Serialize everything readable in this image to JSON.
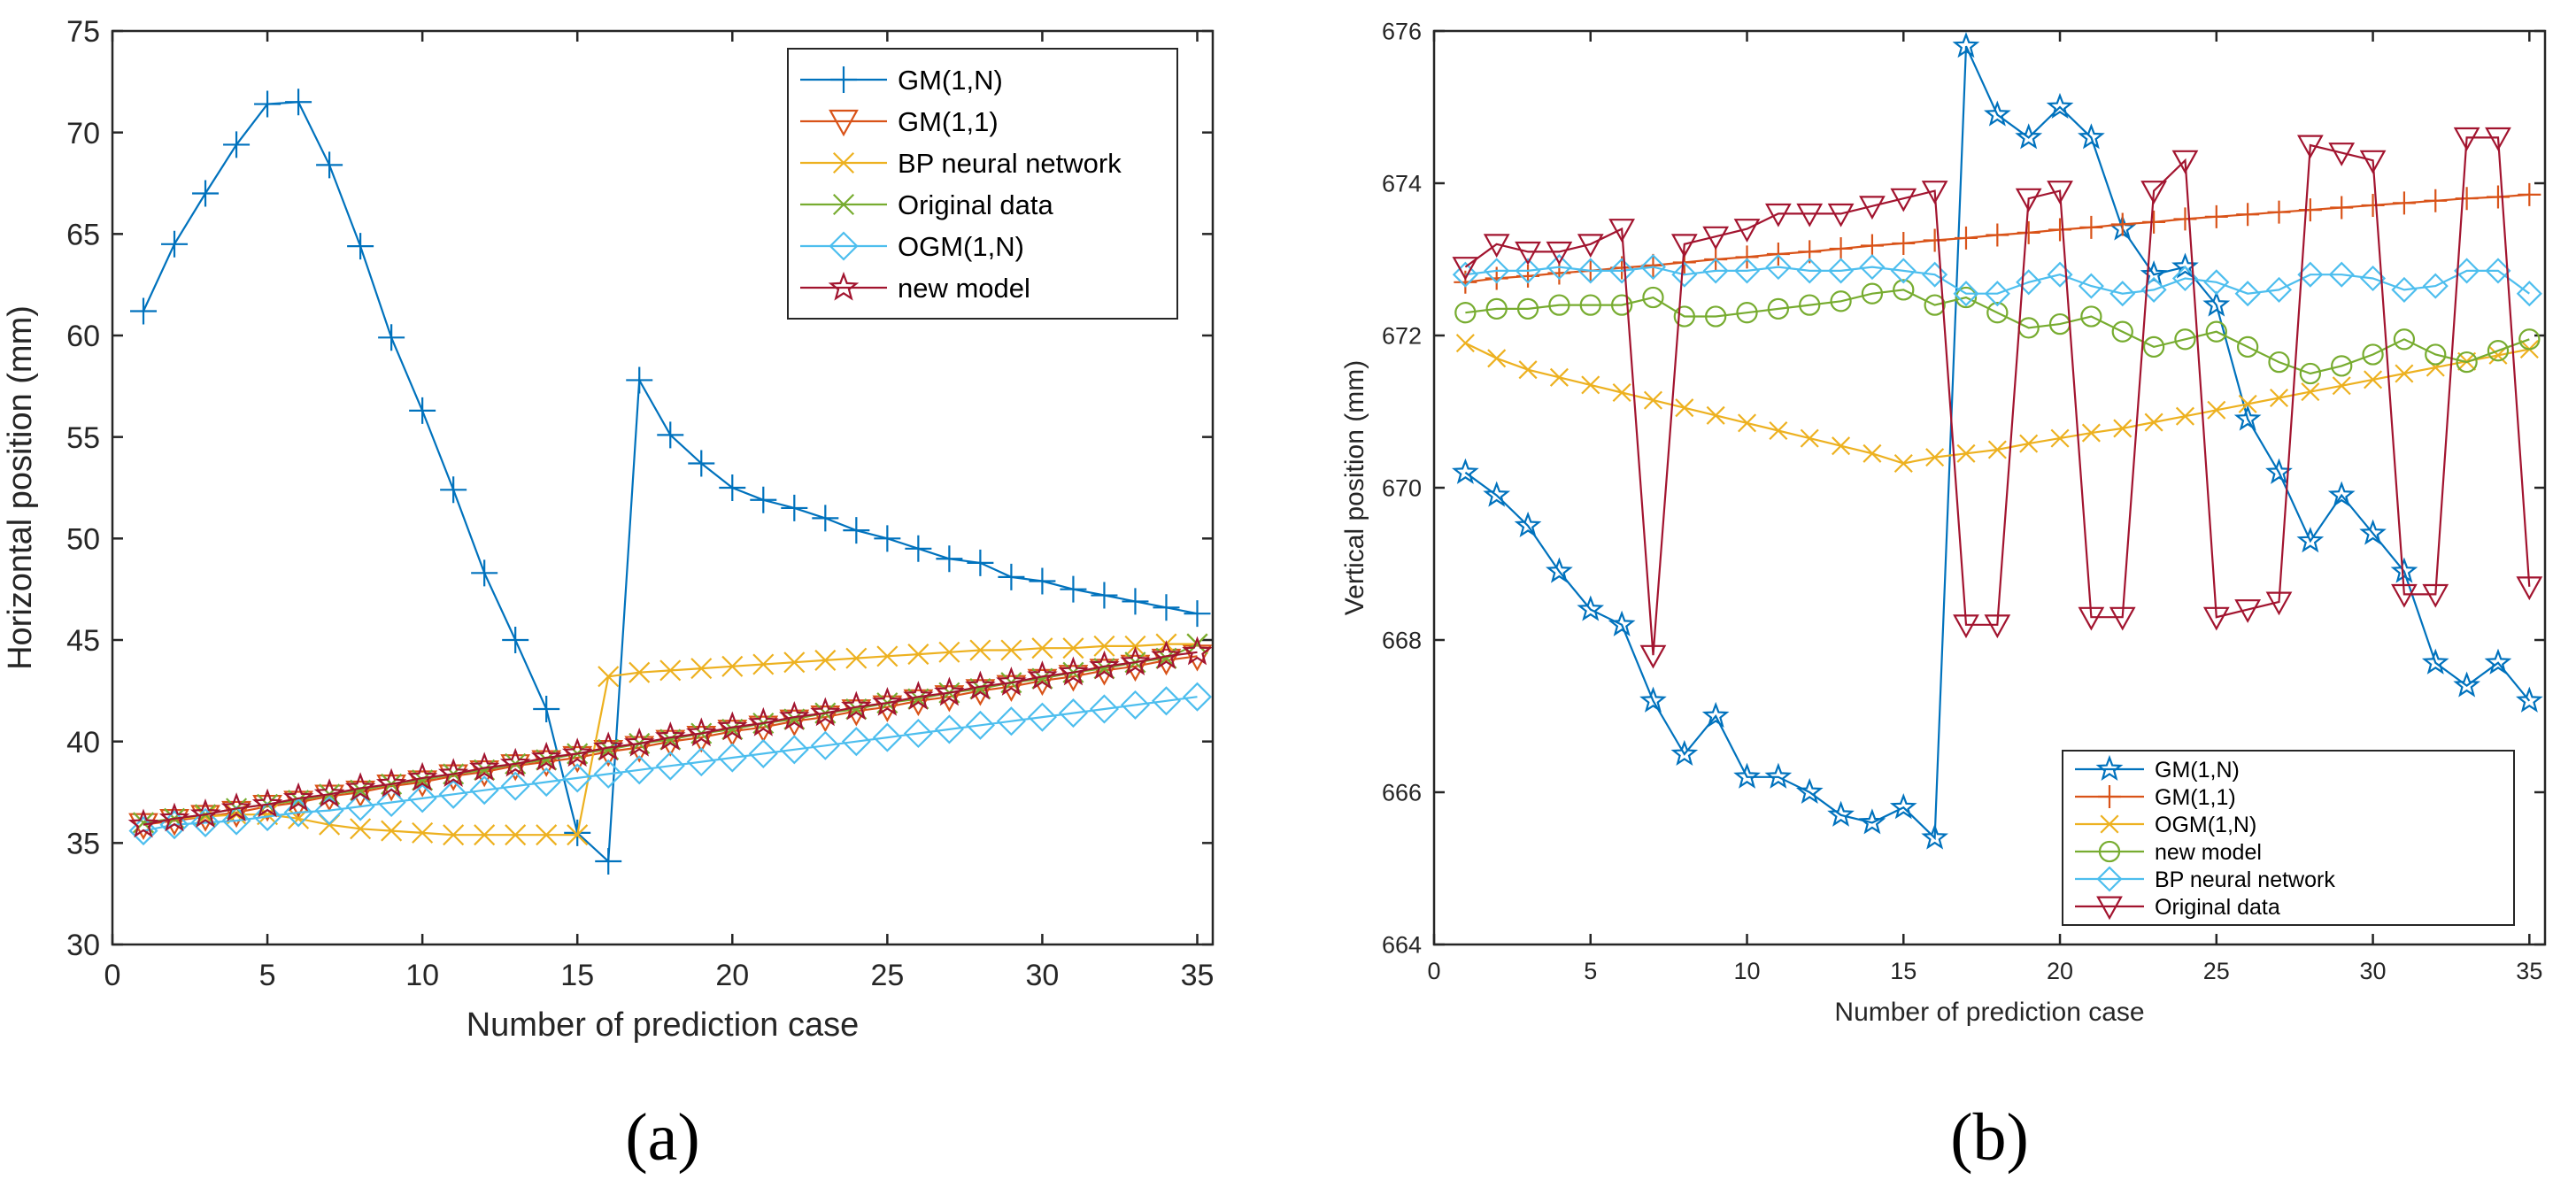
{
  "colors": {
    "blue": "#0072BD",
    "orange": "#D95319",
    "yellow": "#EDB120",
    "purple": "#7E2F8E",
    "green": "#77AC30",
    "cyan": "#4DBEEE",
    "maroon": "#A2142F"
  },
  "chart_data": [
    {
      "type": "line",
      "panel_label": "(a)",
      "xlabel": "Number of prediction case",
      "ylabel": "Horizontal position (mm)",
      "xlim": [
        0,
        35.5
      ],
      "ylim": [
        30,
        75
      ],
      "xticks": [
        0,
        5,
        10,
        15,
        20,
        25,
        30,
        35
      ],
      "yticks": [
        30,
        35,
        40,
        45,
        50,
        55,
        60,
        65,
        70,
        75
      ],
      "legend_position": "top-right",
      "x": [
        1,
        2,
        3,
        4,
        5,
        6,
        7,
        8,
        9,
        10,
        11,
        12,
        13,
        14,
        15,
        16,
        17,
        18,
        19,
        20,
        21,
        22,
        23,
        24,
        25,
        26,
        27,
        28,
        29,
        30,
        31,
        32,
        33,
        34,
        35
      ],
      "series": [
        {
          "name": "GM(1,N)",
          "color": "blue",
          "marker": "plus",
          "values": [
            61.2,
            64.5,
            67,
            69.4,
            71.4,
            71.5,
            68.4,
            64.4,
            59.9,
            56.3,
            52.4,
            48.3,
            45,
            41.6,
            35.5,
            34.1,
            57.8,
            55.1,
            53.7,
            52.5,
            51.9,
            51.5,
            51,
            50.4,
            50,
            49.5,
            49,
            48.8,
            48.1,
            47.9,
            47.5,
            47.2,
            46.9,
            46.6,
            46.3
          ]
        },
        {
          "name": "GM(1,1)",
          "color": "orange",
          "marker": "triangle-down",
          "values": [
            35.9,
            36.1,
            36.3,
            36.5,
            36.8,
            37,
            37.3,
            37.5,
            37.8,
            38,
            38.3,
            38.5,
            38.8,
            39,
            39.2,
            39.5,
            39.7,
            40,
            40.2,
            40.5,
            40.7,
            41,
            41.2,
            41.5,
            41.7,
            42,
            42.2,
            42.5,
            42.7,
            43,
            43.2,
            43.5,
            43.7,
            44,
            44.2
          ]
        },
        {
          "name": "BP neural network",
          "color": "yellow",
          "marker": "x",
          "values": [
            36,
            36.2,
            36.3,
            36.4,
            36.4,
            36.2,
            35.9,
            35.7,
            35.6,
            35.5,
            35.4,
            35.4,
            35.4,
            35.4,
            35.4,
            43.2,
            43.4,
            43.5,
            43.6,
            43.7,
            43.8,
            43.9,
            44,
            44.1,
            44.2,
            44.3,
            44.4,
            44.5,
            44.5,
            44.6,
            44.6,
            44.7,
            44.7,
            44.8,
            44.8
          ]
        },
        {
          "name": "Original data",
          "color": "green",
          "marker": "x",
          "values": [
            36,
            36.2,
            36.4,
            36.7,
            36.9,
            37.1,
            37.4,
            37.6,
            37.9,
            38.1,
            38.4,
            38.6,
            38.9,
            39.1,
            39.4,
            39.6,
            39.9,
            40.1,
            40.4,
            40.6,
            40.9,
            41.1,
            41.4,
            41.6,
            41.9,
            42.1,
            42.4,
            42.6,
            42.9,
            43.1,
            43.4,
            43.6,
            43.9,
            44.1,
            44.8
          ]
        },
        {
          "name": "OGM(1,N)",
          "color": "cyan",
          "marker": "diamond",
          "values": [
            35.6,
            35.9,
            36,
            36.1,
            36.3,
            36.5,
            36.6,
            36.8,
            37,
            37.2,
            37.4,
            37.6,
            37.8,
            38,
            38.2,
            38.4,
            38.6,
            38.8,
            39,
            39.2,
            39.4,
            39.6,
            39.8,
            40,
            40.2,
            40.4,
            40.6,
            40.8,
            41,
            41.2,
            41.4,
            41.6,
            41.8,
            42,
            42.2
          ]
        },
        {
          "name": "new model",
          "color": "maroon",
          "marker": "star",
          "values": [
            35.9,
            36.2,
            36.4,
            36.7,
            36.9,
            37.2,
            37.4,
            37.7,
            37.9,
            38.2,
            38.4,
            38.7,
            38.9,
            39.2,
            39.4,
            39.7,
            39.9,
            40.2,
            40.4,
            40.7,
            40.9,
            41.2,
            41.4,
            41.7,
            41.9,
            42.2,
            42.4,
            42.7,
            42.9,
            43.2,
            43.4,
            43.7,
            43.9,
            44.2,
            44.4
          ]
        }
      ]
    },
    {
      "type": "line",
      "panel_label": "(b)",
      "xlabel": "Number of prediction case",
      "ylabel": "Vertical position (mm)",
      "xlim": [
        0,
        35.5
      ],
      "ylim": [
        664,
        676
      ],
      "xticks": [
        0,
        5,
        10,
        15,
        20,
        25,
        30,
        35
      ],
      "yticks": [
        664,
        666,
        668,
        670,
        672,
        674,
        676
      ],
      "legend_position": "bottom-right",
      "x": [
        1,
        2,
        3,
        4,
        5,
        6,
        7,
        8,
        9,
        10,
        11,
        12,
        13,
        14,
        15,
        16,
        17,
        18,
        19,
        20,
        21,
        22,
        23,
        24,
        25,
        26,
        27,
        28,
        29,
        30,
        31,
        32,
        33,
        34,
        35
      ],
      "series": [
        {
          "name": "GM(1,N)",
          "color": "blue",
          "marker": "star",
          "values": [
            670.2,
            669.9,
            669.5,
            668.9,
            668.4,
            668.2,
            667.2,
            666.5,
            667,
            666.2,
            666.2,
            666,
            665.7,
            665.6,
            665.8,
            665.4,
            675.8,
            674.9,
            674.6,
            675,
            674.6,
            673.4,
            672.8,
            672.9,
            672.4,
            670.9,
            670.2,
            669.3,
            669.9,
            669.4,
            668.9,
            667.7,
            667.4,
            667.7,
            667.2
          ]
        },
        {
          "name": "GM(1,1)",
          "color": "orange",
          "marker": "plus",
          "values": [
            672.7,
            672.75,
            672.78,
            672.82,
            672.85,
            672.89,
            672.92,
            672.96,
            673,
            673.03,
            673.07,
            673.1,
            673.14,
            673.18,
            673.21,
            673.25,
            673.28,
            673.32,
            673.35,
            673.39,
            673.42,
            673.46,
            673.49,
            673.53,
            673.56,
            673.59,
            673.62,
            673.65,
            673.68,
            673.71,
            673.74,
            673.77,
            673.8,
            673.82,
            673.85
          ]
        },
        {
          "name": "OGM(1,N)",
          "color": "yellow",
          "marker": "x",
          "values": [
            671.9,
            671.7,
            671.55,
            671.45,
            671.35,
            671.25,
            671.15,
            671.05,
            670.95,
            670.85,
            670.75,
            670.65,
            670.55,
            670.45,
            670.32,
            670.4,
            670.45,
            670.5,
            670.58,
            670.65,
            670.72,
            670.78,
            670.86,
            670.94,
            671.02,
            671.1,
            671.18,
            671.26,
            671.34,
            671.42,
            671.5,
            671.58,
            671.66,
            671.74,
            671.82
          ]
        },
        {
          "name": "new model",
          "color": "green",
          "marker": "circle",
          "values": [
            672.3,
            672.35,
            672.35,
            672.4,
            672.4,
            672.4,
            672.5,
            672.25,
            672.25,
            672.3,
            672.35,
            672.4,
            672.45,
            672.55,
            672.6,
            672.4,
            672.5,
            672.3,
            672.1,
            672.15,
            672.25,
            672.05,
            671.85,
            671.95,
            672.05,
            671.85,
            671.65,
            671.5,
            671.6,
            671.75,
            671.95,
            671.75,
            671.65,
            671.8,
            671.95
          ]
        },
        {
          "name": "BP neural network",
          "color": "cyan",
          "marker": "diamond",
          "values": [
            672.8,
            672.85,
            672.85,
            672.9,
            672.85,
            672.85,
            672.9,
            672.8,
            672.85,
            672.85,
            672.9,
            672.85,
            672.85,
            672.9,
            672.85,
            672.8,
            672.55,
            672.55,
            672.7,
            672.8,
            672.65,
            672.55,
            672.6,
            672.75,
            672.7,
            672.55,
            672.6,
            672.8,
            672.8,
            672.75,
            672.6,
            672.65,
            672.85,
            672.85,
            672.55
          ]
        },
        {
          "name": "Original data",
          "color": "maroon",
          "marker": "triangle-down",
          "values": [
            672.9,
            673.2,
            673.1,
            673.1,
            673.2,
            673.4,
            667.8,
            673.2,
            673.3,
            673.4,
            673.6,
            673.6,
            673.6,
            673.7,
            673.8,
            673.9,
            668.2,
            668.2,
            673.8,
            673.9,
            668.3,
            668.3,
            673.9,
            674.3,
            668.3,
            668.4,
            668.5,
            674.5,
            674.4,
            674.3,
            668.6,
            668.6,
            674.6,
            674.6,
            668.7
          ]
        }
      ]
    }
  ]
}
